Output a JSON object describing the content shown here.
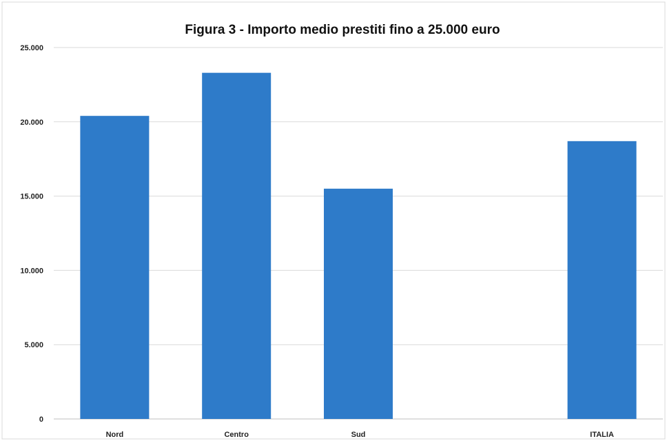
{
  "chart_data": {
    "type": "bar",
    "title": "Figura 3 - Importo medio prestiti fino a 25.000 euro",
    "xlabel": "",
    "ylabel": "",
    "categories": [
      "Nord",
      "Centro",
      "Sud",
      "",
      "ITALIA"
    ],
    "values": [
      20400,
      23300,
      15500,
      null,
      18700
    ],
    "ylim": [
      0,
      25000
    ],
    "y_ticks": [
      0,
      5000,
      10000,
      15000,
      20000,
      25000
    ],
    "y_tick_labels": [
      "0",
      "5.000",
      "10.000",
      "15.000",
      "20.000",
      "25.000"
    ],
    "grid": true,
    "legend": "none",
    "bar_color": "#2E7BC9",
    "grid_color": "#D9D9D9"
  }
}
